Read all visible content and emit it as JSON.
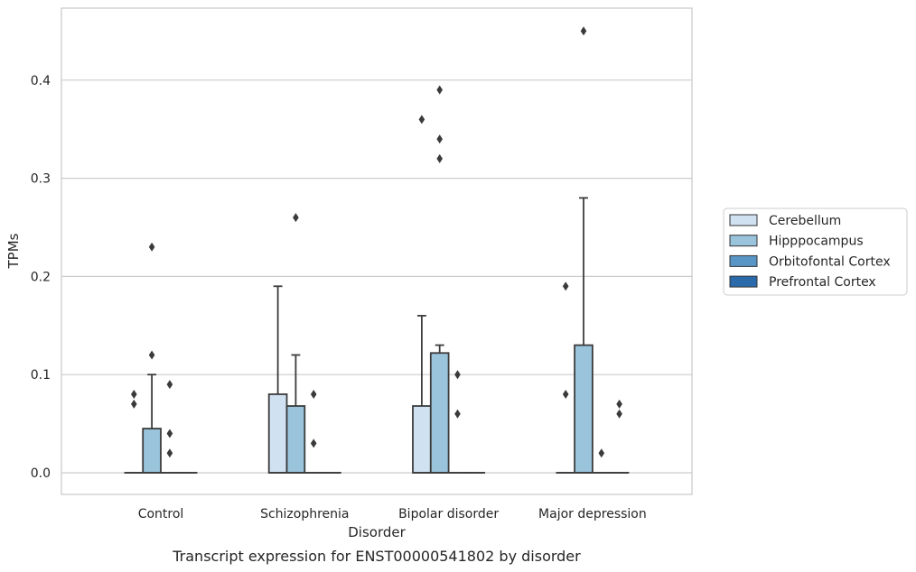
{
  "chart_data": {
    "type": "box",
    "caption": "Transcript expression for ENST00000541802 by disorder",
    "xlabel": "Disorder",
    "ylabel": "TPMs",
    "ylim": [
      -0.022,
      0.475
    ],
    "yticks": [
      0.0,
      0.1,
      0.2,
      0.3,
      0.4
    ],
    "ytick_labels": [
      "0.0",
      "0.1",
      "0.2",
      "0.3",
      "0.4"
    ],
    "grid": true,
    "legend_position": "right",
    "categories": [
      "Control",
      "Schizophrenia",
      "Bipolar disorder",
      "Major depression"
    ],
    "series": [
      {
        "name": "Cerebellum",
        "color": "#d0e1f2",
        "boxes": [
          {
            "q1": 0,
            "median": 0,
            "q3": 0,
            "whisker_low": 0,
            "whisker_high": 0,
            "outliers": [
              0.07,
              0.08
            ]
          },
          {
            "q1": 0,
            "median": 0,
            "q3": 0.08,
            "whisker_low": 0,
            "whisker_high": 0.19,
            "outliers": []
          },
          {
            "q1": 0,
            "median": 0,
            "q3": 0.068,
            "whisker_low": 0,
            "whisker_high": 0.16,
            "outliers": [
              0.36
            ]
          },
          {
            "q1": 0,
            "median": 0,
            "q3": 0,
            "whisker_low": 0,
            "whisker_high": 0,
            "outliers": [
              0.08,
              0.19
            ]
          }
        ]
      },
      {
        "name": "Hipppocampus",
        "color": "#9ac3dc",
        "boxes": [
          {
            "q1": 0,
            "median": 0,
            "q3": 0.045,
            "whisker_low": 0,
            "whisker_high": 0.1,
            "outliers": [
              0.12,
              0.23
            ]
          },
          {
            "q1": 0,
            "median": 0,
            "q3": 0.068,
            "whisker_low": 0,
            "whisker_high": 0.12,
            "outliers": [
              0.26
            ]
          },
          {
            "q1": 0,
            "median": 0,
            "q3": 0.122,
            "whisker_low": 0,
            "whisker_high": 0.13,
            "outliers": [
              0.32,
              0.34,
              0.39
            ]
          },
          {
            "q1": 0,
            "median": 0,
            "q3": 0.13,
            "whisker_low": 0,
            "whisker_high": 0.28,
            "outliers": [
              0.45
            ]
          }
        ]
      },
      {
        "name": "Orbitofontal Cortex",
        "color": "#5996c6",
        "boxes": [
          {
            "q1": 0,
            "median": 0,
            "q3": 0,
            "whisker_low": 0,
            "whisker_high": 0,
            "outliers": [
              0.02,
              0.04,
              0.09
            ]
          },
          {
            "q1": 0,
            "median": 0,
            "q3": 0,
            "whisker_low": 0,
            "whisker_high": 0,
            "outliers": [
              0.03,
              0.08
            ]
          },
          {
            "q1": 0,
            "median": 0,
            "q3": 0,
            "whisker_low": 0,
            "whisker_high": 0,
            "outliers": [
              0.06,
              0.1
            ]
          },
          {
            "q1": 0,
            "median": 0,
            "q3": 0,
            "whisker_low": 0,
            "whisker_high": 0,
            "outliers": [
              0.02
            ]
          }
        ]
      },
      {
        "name": "Prefrontal Cortex",
        "color": "#2a6aaa",
        "boxes": [
          {
            "q1": 0,
            "median": 0,
            "q3": 0,
            "whisker_low": 0,
            "whisker_high": 0,
            "outliers": []
          },
          {
            "q1": 0,
            "median": 0,
            "q3": 0,
            "whisker_low": 0,
            "whisker_high": 0,
            "outliers": []
          },
          {
            "q1": 0,
            "median": 0,
            "q3": 0,
            "whisker_low": 0,
            "whisker_high": 0,
            "outliers": []
          },
          {
            "q1": 0,
            "median": 0,
            "q3": 0,
            "whisker_low": 0,
            "whisker_high": 0,
            "outliers": [
              0.06,
              0.07
            ]
          }
        ]
      }
    ]
  }
}
